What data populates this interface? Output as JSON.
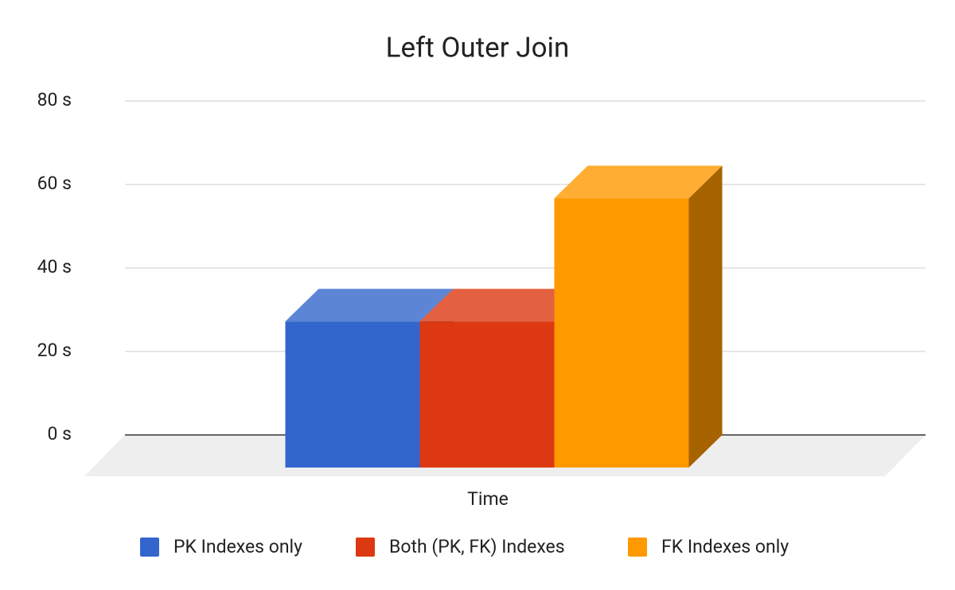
{
  "chart_data": {
    "type": "bar3d",
    "title": "Left Outer Join",
    "x_label": "Time",
    "categories": [
      "Time"
    ],
    "series": [
      {
        "name": "PK Indexes only",
        "color": "#3366cc",
        "values": [
          35
        ]
      },
      {
        "name": "Both (PK, FK) Indexes",
        "color": "#dc3912",
        "values": [
          35
        ]
      },
      {
        "name": "FK Indexes only",
        "color": "#ff9900",
        "values": [
          64.5
        ]
      }
    ],
    "ylim": [
      0,
      80
    ],
    "yticks": [
      {
        "value": 0,
        "label": "0 s"
      },
      {
        "value": 20,
        "label": "20 s"
      },
      {
        "value": 40,
        "label": "40 s"
      },
      {
        "value": 60,
        "label": "60 s"
      },
      {
        "value": 80,
        "label": "80 s"
      }
    ],
    "grid": true,
    "legend": "bottom"
  }
}
